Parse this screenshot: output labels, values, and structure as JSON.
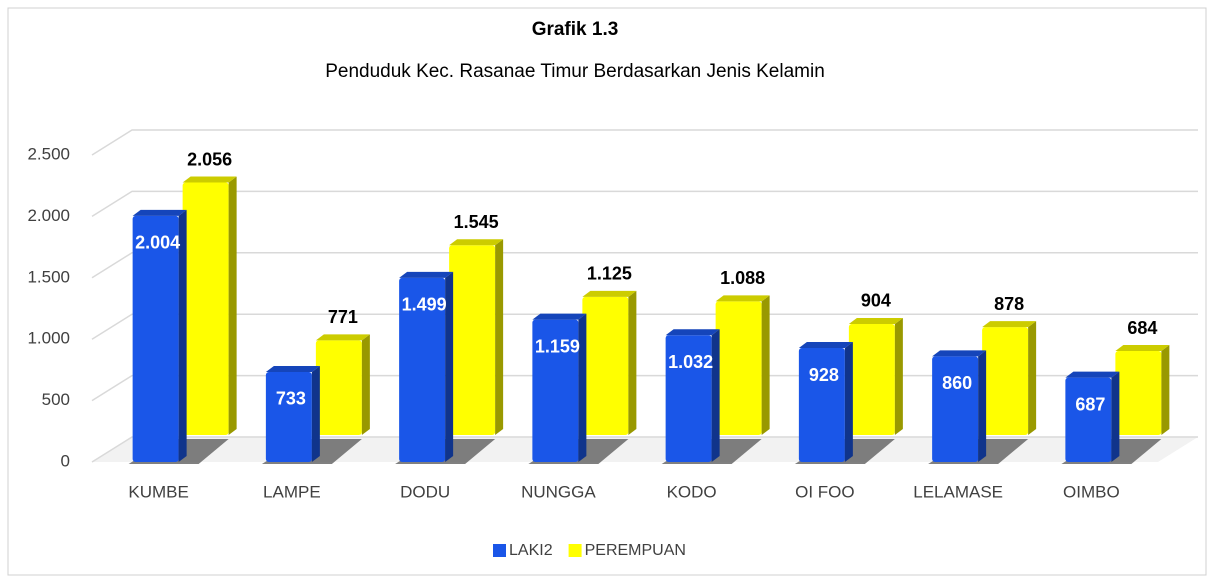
{
  "chart_data": {
    "type": "bar3d",
    "title": "Grafik 1.3",
    "subtitle": "Penduduk Kec. Rasanae Timur Berdasarkan Jenis Kelamin",
    "categories": [
      "KUMBE",
      "LAMPE",
      "DODU",
      "NUNGGA",
      "KODO",
      "OI FOO",
      "LELAMASE",
      "OIMBO"
    ],
    "series": [
      {
        "name": "LAKI2",
        "color": "#1a56e8",
        "values": [
          2004,
          733,
          1499,
          1159,
          1032,
          928,
          860,
          687
        ],
        "value_labels": [
          "2.004",
          "733",
          "1.499",
          "1.159",
          "1.032",
          "928",
          "860",
          "687"
        ]
      },
      {
        "name": "PEREMPUAN",
        "color": "#ffff00",
        "values": [
          2056,
          771,
          1545,
          1125,
          1088,
          904,
          878,
          684
        ],
        "value_labels": [
          "2.056",
          "771",
          "1.545",
          "1.125",
          "1.088",
          "904",
          "878",
          "684"
        ]
      }
    ],
    "ylim": [
      0,
      2500
    ],
    "yticks": [
      0,
      500,
      {
        "value": 1000,
        "label": "1.000"
      },
      {
        "value": 1500,
        "label": "1.500"
      },
      {
        "value": 2000,
        "label": "2.000"
      },
      {
        "value": 2500,
        "label": "2.500"
      }
    ],
    "grid": true,
    "legend": "bottom"
  }
}
